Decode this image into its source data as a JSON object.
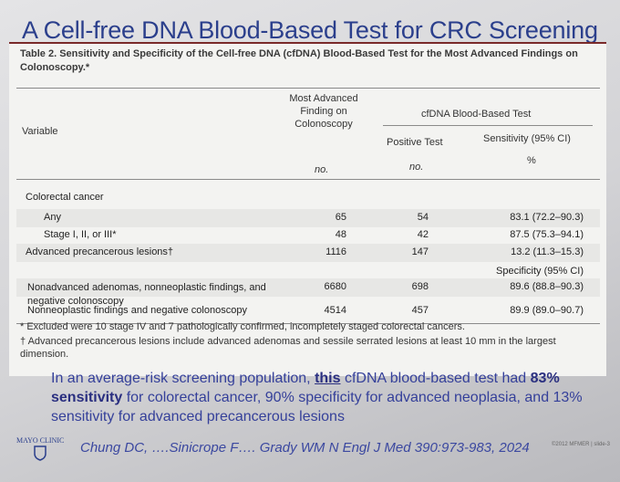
{
  "slide": {
    "title": "A Cell-free DNA Blood-Based Test for CRC Screening"
  },
  "table": {
    "caption": "Table 2. Sensitivity and Specificity of the Cell-free DNA (cfDNA) Blood-Based Test for the Most Advanced Findings on Colonoscopy.*",
    "headers": {
      "variable": "Variable",
      "finding": "Most Advanced Finding on Colonoscopy",
      "test": "cfDNA Blood-Based Test",
      "positive": "Positive Test",
      "sensitivity": "Sensitivity (95% CI)",
      "units": [
        "no.",
        "no.",
        "%"
      ]
    },
    "rows": [
      [
        "Colorectal cancer",
        "",
        "",
        ""
      ],
      [
        "Any",
        "65",
        "54",
        "83.1 (72.2–90.3)"
      ],
      [
        "Stage I, II, or III*",
        "48",
        "42",
        "87.5 (75.3–94.1)"
      ],
      [
        "Advanced precancerous lesions†",
        "1116",
        "147",
        "13.2 (11.3–15.3)"
      ],
      [
        "",
        "",
        "",
        "Specificity (95% CI)"
      ],
      [
        "Nonadvanced adenomas, nonneoplastic findings, and negative colonoscopy",
        "6680",
        "698",
        "89.6 (88.8–90.3)"
      ],
      [
        "Nonneoplastic findings and negative colonoscopy",
        "4514",
        "457",
        "89.9 (89.0–90.7)"
      ]
    ]
  },
  "footnotes": [
    "* Excluded were 10 stage IV and 7 pathologically confirmed, incompletely staged colorectal cancers.",
    "† Advanced precancerous lesions include advanced adenomas and sessile serrated lesions at least 10 mm in the largest dimension."
  ],
  "summary": [
    "In an average-risk screening population, ",
    "this",
    " cfDNA blood-based test had ",
    "83% ",
    "sensitivity",
    " for colorectal cancer, 90% specificity for advanced neoplasia, and 13% sensitivity for advanced precancerous lesions"
  ],
  "footer": {
    "logo": "MAYO CLINIC",
    "citation": "Chung DC, ….Sinicrope F…. Grady WM N Engl J Med 390:973-983, 2024",
    "copyright": "©2012 MFMER | slide-3"
  }
}
